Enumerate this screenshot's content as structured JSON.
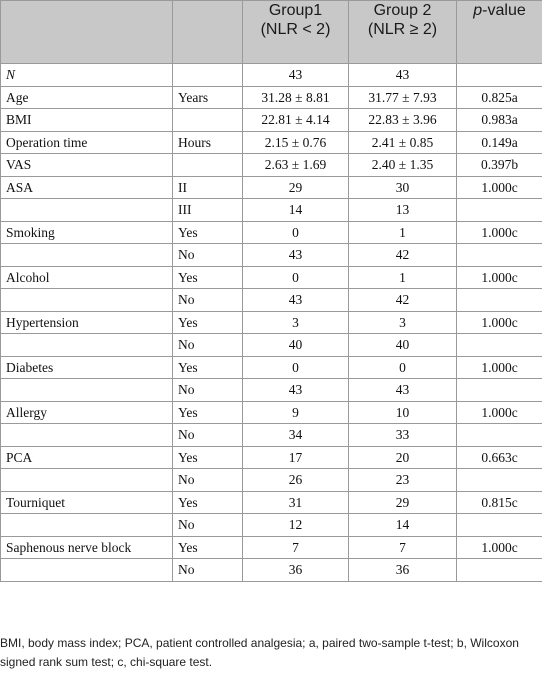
{
  "header": {
    "col_group1_line1": "Group1",
    "col_group1_line2": "(NLR < 2)",
    "col_group2_line1": "Group 2",
    "col_group2_line2": "(NLR ≥ 2)",
    "col_p_italic": "p",
    "col_p_rest": "-value"
  },
  "rows": [
    {
      "label": "N",
      "sub": "",
      "g1": "43",
      "g2": "43",
      "p": "",
      "italic": true
    },
    {
      "label": "Age",
      "sub": "Years",
      "g1": "31.28 ± 8.81",
      "g2": "31.77 ± 7.93",
      "p": "0.825a"
    },
    {
      "label": "BMI",
      "sub": "",
      "g1": "22.81 ± 4.14",
      "g2": "22.83 ± 3.96",
      "p": "0.983a"
    },
    {
      "label": "Operation time",
      "sub": "Hours",
      "g1": "2.15 ± 0.76",
      "g2": "2.41 ± 0.85",
      "p": "0.149a"
    },
    {
      "label": "VAS",
      "sub": "",
      "g1": "2.63 ± 1.69",
      "g2": "2.40 ± 1.35",
      "p": "0.397b"
    },
    {
      "label": "ASA",
      "sub": "II",
      "g1": "29",
      "g2": "30",
      "p": "1.000c"
    },
    {
      "label": "",
      "sub": "III",
      "g1": "14",
      "g2": "13",
      "p": ""
    },
    {
      "label": "Smoking",
      "sub": "Yes",
      "g1": "0",
      "g2": "1",
      "p": "1.000c"
    },
    {
      "label": "",
      "sub": "No",
      "g1": "43",
      "g2": "42",
      "p": ""
    },
    {
      "label": "Alcohol",
      "sub": "Yes",
      "g1": "0",
      "g2": "1",
      "p": "1.000c"
    },
    {
      "label": "",
      "sub": "No",
      "g1": "43",
      "g2": "42",
      "p": ""
    },
    {
      "label": "Hypertension",
      "sub": "Yes",
      "g1": "3",
      "g2": "3",
      "p": "1.000c"
    },
    {
      "label": "",
      "sub": "No",
      "g1": "40",
      "g2": "40",
      "p": ""
    },
    {
      "label": "Diabetes",
      "sub": "Yes",
      "g1": "0",
      "g2": "0",
      "p": "1.000c"
    },
    {
      "label": "",
      "sub": "No",
      "g1": "43",
      "g2": "43",
      "p": ""
    },
    {
      "label": "Allergy",
      "sub": "Yes",
      "g1": "9",
      "g2": "10",
      "p": "1.000c"
    },
    {
      "label": "",
      "sub": "No",
      "g1": "34",
      "g2": "33",
      "p": ""
    },
    {
      "label": "PCA",
      "sub": "Yes",
      "g1": "17",
      "g2": "20",
      "p": "0.663c"
    },
    {
      "label": "",
      "sub": "No",
      "g1": "26",
      "g2": "23",
      "p": ""
    },
    {
      "label": "Tourniquet",
      "sub": "Yes",
      "g1": "31",
      "g2": "29",
      "p": "0.815c"
    },
    {
      "label": "",
      "sub": "No",
      "g1": "12",
      "g2": "14",
      "p": ""
    },
    {
      "label": "Saphenous nerve block",
      "sub": "Yes",
      "g1": "7",
      "g2": "7",
      "p": "1.000c"
    },
    {
      "label": "",
      "sub": "No",
      "g1": "36",
      "g2": "36",
      "p": ""
    }
  ],
  "footnote": "BMI, body mass index; PCA, patient controlled analgesia; a, paired two-sample t-test; b, Wilcoxon signed rank sum test; c, chi-square test."
}
